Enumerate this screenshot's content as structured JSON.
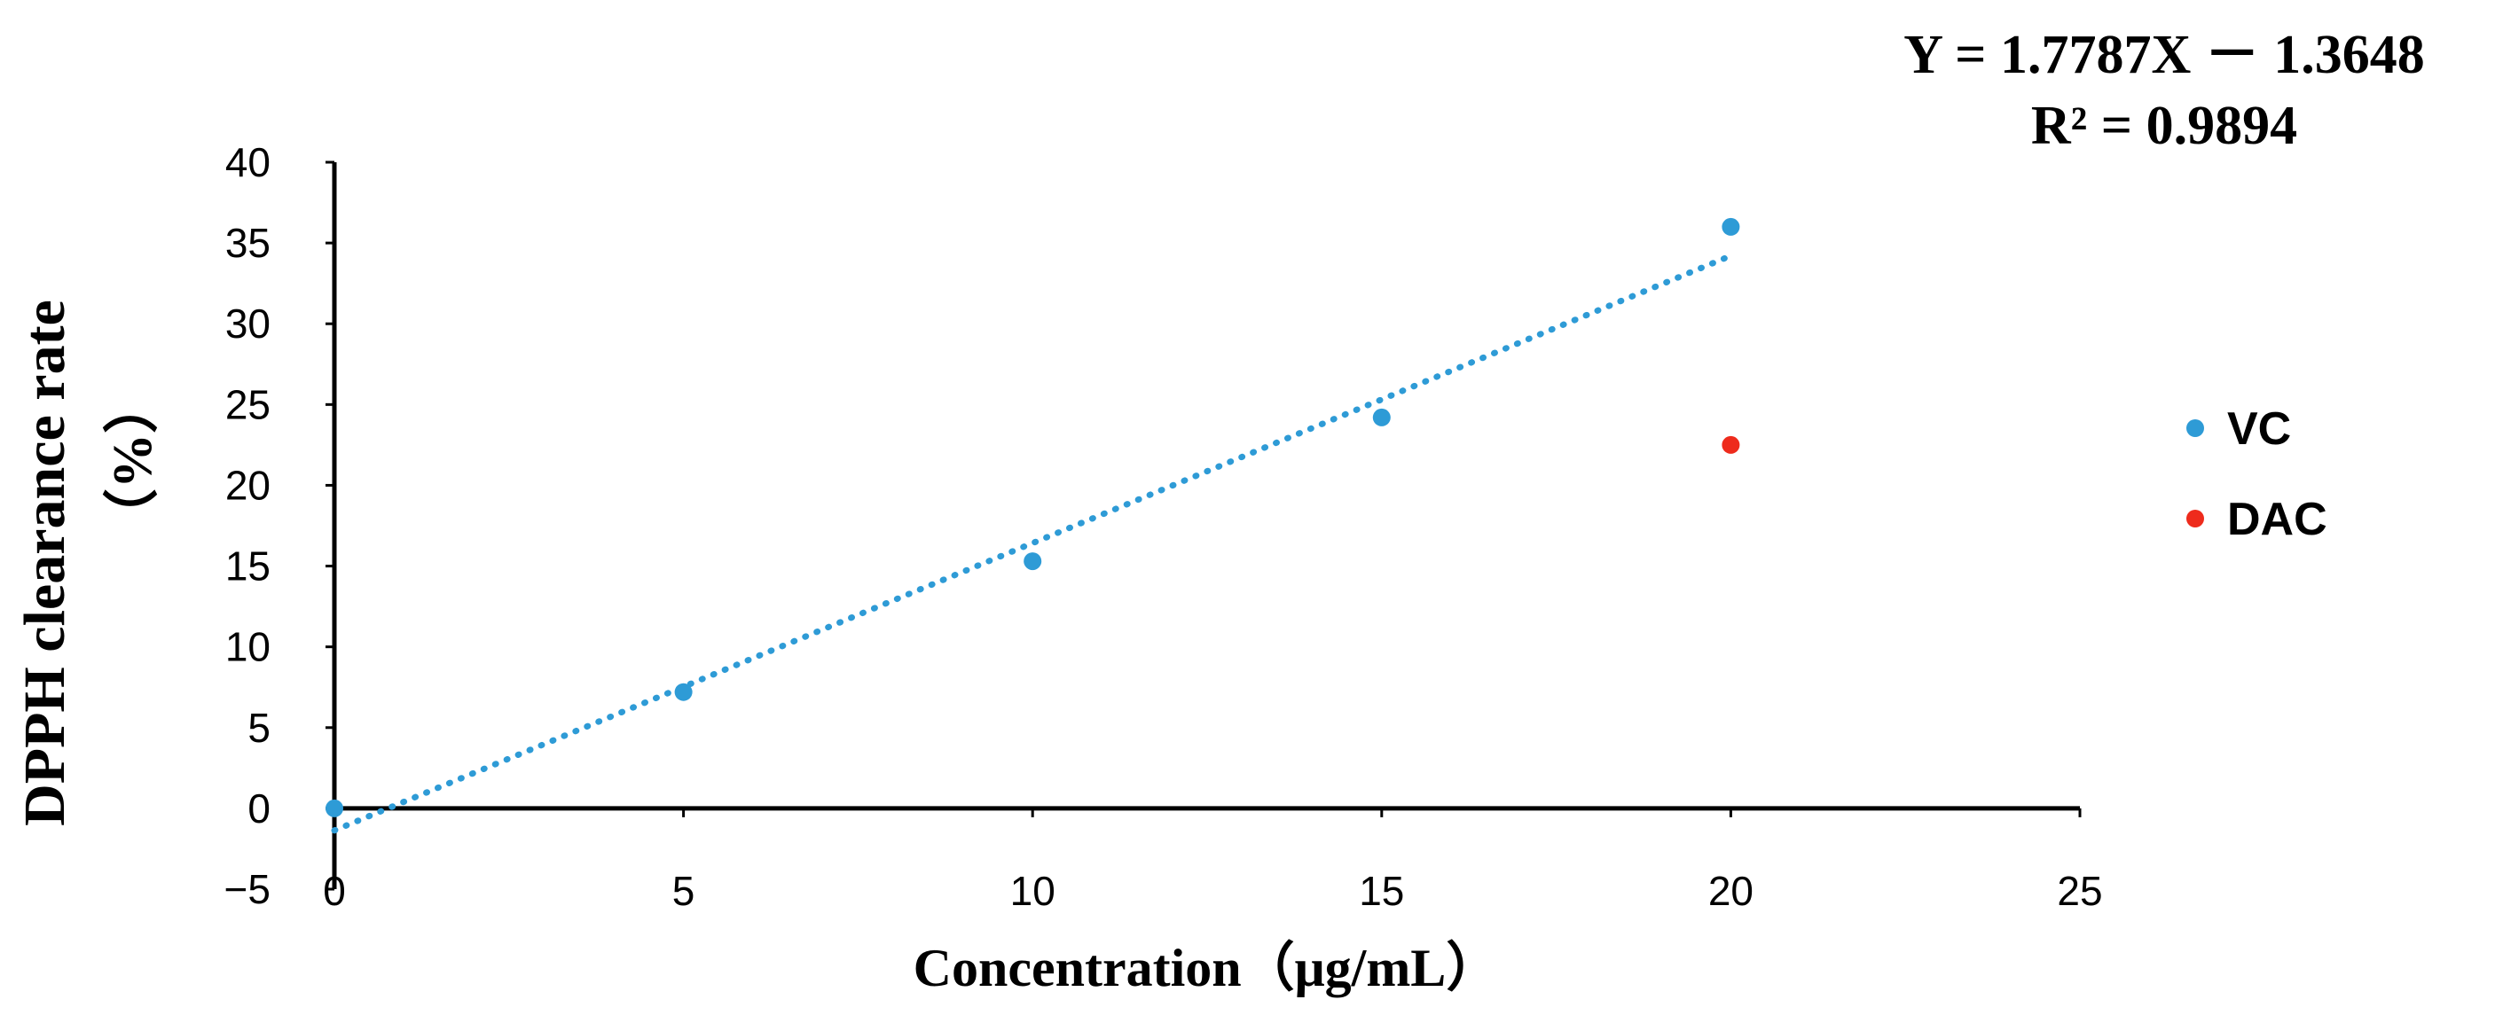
{
  "chart_data": {
    "type": "scatter",
    "title": "",
    "xlabel": "Concentration（μg/mL）",
    "ylabel": "DPPH clearance rate",
    "ylabel_unit": "（%）",
    "xlim": [
      0,
      25
    ],
    "ylim": [
      -5,
      40
    ],
    "x_ticks": [
      0,
      5,
      10,
      15,
      20,
      25
    ],
    "y_ticks": [
      -5,
      0,
      5,
      10,
      15,
      20,
      25,
      30,
      35,
      40
    ],
    "x_tick_labels": [
      "0",
      "5",
      "10",
      "15",
      "20",
      "25"
    ],
    "y_tick_labels": [
      "−5",
      "0",
      "5",
      "10",
      "15",
      "20",
      "25",
      "30",
      "35",
      "40"
    ],
    "grid": false,
    "legend_position": "right",
    "series": [
      {
        "name": "VC",
        "color": "#2e9bd6",
        "points": [
          {
            "x": 0,
            "y": 0
          },
          {
            "x": 5,
            "y": 7.2
          },
          {
            "x": 10,
            "y": 15.3
          },
          {
            "x": 15,
            "y": 24.2
          },
          {
            "x": 20,
            "y": 36.0
          }
        ]
      },
      {
        "name": "DAC",
        "color": "#ee2b1c",
        "points": [
          {
            "x": 20,
            "y": 22.5
          }
        ]
      }
    ],
    "trendline": {
      "series": "VC",
      "slope": 1.7787,
      "intercept": -1.3648,
      "x_range": [
        0,
        20
      ],
      "style": "dotted",
      "color": "#2e9bd6",
      "equation": "Y = 1.7787X － 1.3648",
      "r_squared": "R² = 0.9894"
    }
  }
}
